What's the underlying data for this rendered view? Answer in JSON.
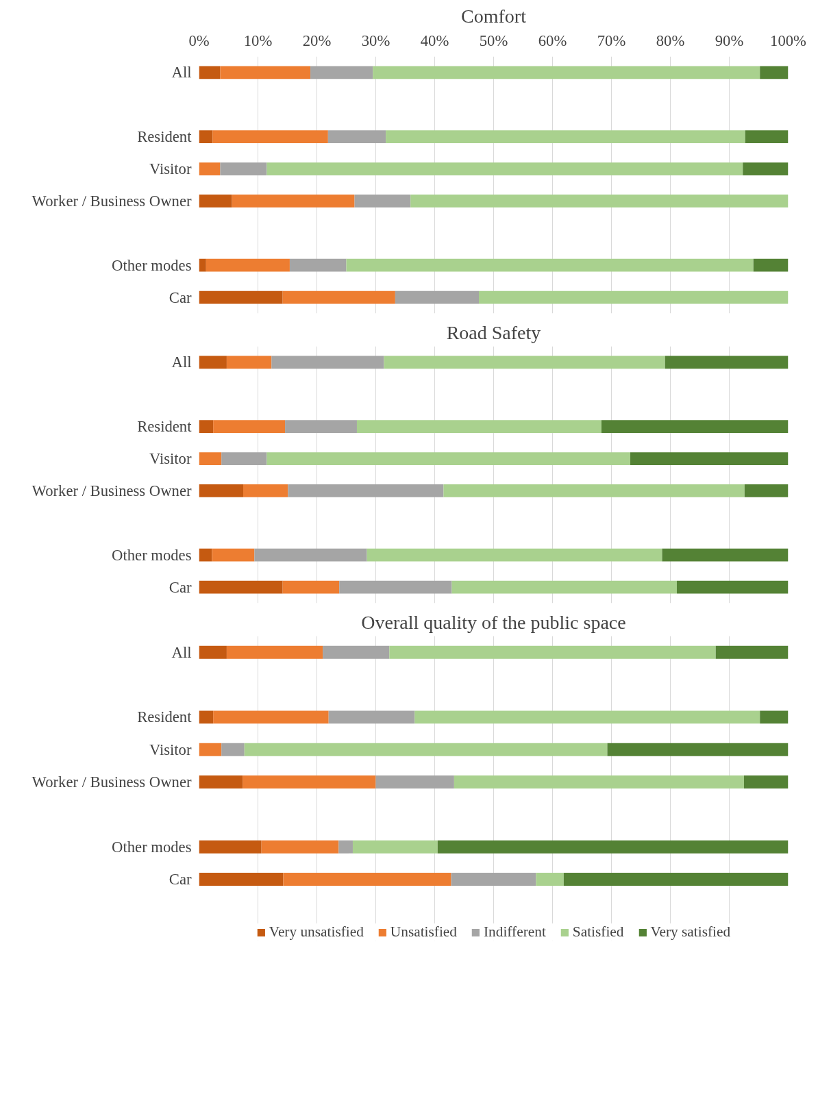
{
  "chart_data": [
    {
      "type": "bar",
      "orientation": "horizontal",
      "stacked": true,
      "title": "Comfort",
      "categories": [
        "All",
        null,
        "Resident",
        "Visitor",
        "Worker / Business Owner",
        null,
        "Other modes",
        "Car"
      ],
      "xlim": [
        0,
        100
      ],
      "xticks": [
        {
          "value": 0,
          "label": "0%"
        },
        {
          "value": 10,
          "label": "10%"
        },
        {
          "value": 20,
          "label": "20%"
        },
        {
          "value": 30,
          "label": "30%"
        },
        {
          "value": 40,
          "label": "40%"
        },
        {
          "value": 50,
          "label": "50%"
        },
        {
          "value": 60,
          "label": "60%"
        },
        {
          "value": 70,
          "label": "70%"
        },
        {
          "value": 80,
          "label": "80%"
        },
        {
          "value": 90,
          "label": "90%"
        },
        {
          "value": 100,
          "label": "100%"
        }
      ],
      "grid": "x",
      "series": [
        {
          "color": "#c55a11",
          "values": [
            3.6,
            null,
            2.3,
            0,
            5.6,
            null,
            1.2,
            14.2
          ]
        },
        {
          "color": "#ed7d31",
          "values": [
            15.3,
            null,
            19.6,
            3.6,
            20.8,
            null,
            14.2,
            19.1
          ]
        },
        {
          "color": "#a5a5a5",
          "values": [
            10.6,
            null,
            9.8,
            7.9,
            9.5,
            null,
            9.6,
            14.2
          ]
        },
        {
          "color": "#a9d18e",
          "values": [
            65.7,
            null,
            61.0,
            80.8,
            64.1,
            null,
            69.1,
            52.5
          ]
        },
        {
          "color": "#548235",
          "values": [
            4.8,
            null,
            7.3,
            7.7,
            0,
            null,
            5.9,
            0
          ]
        }
      ]
    },
    {
      "type": "bar",
      "orientation": "horizontal",
      "stacked": true,
      "title": "Road Safety",
      "categories": [
        "All",
        null,
        "Resident",
        "Visitor",
        "Worker / Business Owner",
        null,
        "Other modes",
        "Car"
      ],
      "xlim": [
        0,
        100
      ],
      "xticks": [
        0,
        10,
        20,
        30,
        40,
        50,
        60,
        70,
        80,
        90,
        100
      ],
      "tick_labels": "y",
      "grid": "x",
      "series": [
        {
          "color": "#c55a11",
          "values": [
            4.7,
            null,
            2.4,
            0,
            7.5,
            null,
            2.2,
            14.2
          ]
        },
        {
          "color": "#ed7d31",
          "values": [
            7.6,
            null,
            12.2,
            3.8,
            7.6,
            null,
            7.2,
            9.6
          ]
        },
        {
          "color": "#a5a5a5",
          "values": [
            19.1,
            null,
            12.2,
            7.7,
            26.4,
            null,
            19.1,
            19.1
          ]
        },
        {
          "color": "#a9d18e",
          "values": [
            47.7,
            null,
            41.5,
            61.7,
            51.1,
            null,
            50.1,
            38.2
          ]
        },
        {
          "color": "#548235",
          "values": [
            20.9,
            null,
            31.7,
            26.8,
            7.4,
            null,
            21.4,
            18.9
          ]
        }
      ]
    },
    {
      "type": "bar",
      "orientation": "horizontal",
      "stacked": true,
      "title": "Overall quality of the public space",
      "categories": [
        "All",
        null,
        "Resident",
        "Visitor",
        "Worker / Business Owner",
        null,
        "Other modes",
        "Car"
      ],
      "xlim": [
        0,
        100
      ],
      "xticks": [
        0,
        10,
        20,
        30,
        40,
        50,
        60,
        70,
        80,
        90,
        100
      ],
      "tick_labels": "y",
      "grid": "x",
      "legend": "bottom",
      "series": [
        {
          "name": "Very unsatisfied",
          "color": "#c55a11",
          "values": [
            4.7,
            null,
            2.4,
            0,
            7.4,
            null,
            10.6,
            14.3
          ]
        },
        {
          "name": "Unsatisfied",
          "color": "#ed7d31",
          "values": [
            16.3,
            null,
            19.6,
            3.8,
            22.6,
            null,
            13.1,
            28.5
          ]
        },
        {
          "name": "Indifferent",
          "color": "#a5a5a5",
          "values": [
            11.3,
            null,
            14.6,
            3.9,
            13.3,
            null,
            2.4,
            14.4
          ]
        },
        {
          "name": "Satisfied",
          "color": "#a9d18e",
          "values": [
            55.4,
            null,
            58.6,
            61.6,
            49.2,
            null,
            14.4,
            4.7
          ]
        },
        {
          "name": "Very satisfied",
          "color": "#548235",
          "values": [
            12.3,
            null,
            4.8,
            30.7,
            7.5,
            null,
            59.5,
            38.1
          ]
        }
      ]
    }
  ]
}
